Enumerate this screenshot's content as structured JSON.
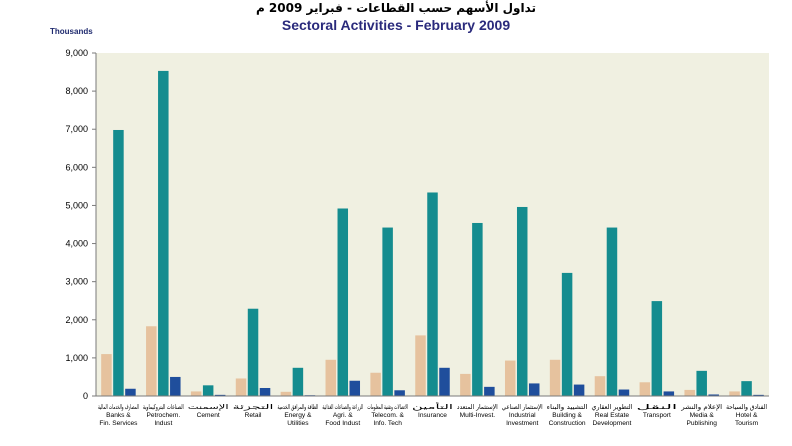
{
  "title_ar": "تداول الأسهم حسب القطاعات - فبراير 2009 م",
  "title_en": "Sectoral Activities - February 2009",
  "chart_data": {
    "type": "bar",
    "ylabel": "Thousands",
    "ylim": [
      0,
      9000
    ],
    "yticks": [
      "0",
      "1,000",
      "2,000",
      "3,000",
      "4,000",
      "5,000",
      "6,000",
      "7,000",
      "8,000",
      "9,000"
    ],
    "ytick_values": [
      0,
      1000,
      2000,
      3000,
      4000,
      5000,
      6000,
      7000,
      8000,
      9000
    ],
    "grid": false,
    "legend": "none",
    "categories": [
      {
        "en": [
          "Banks &",
          "Fin. Services"
        ],
        "ar": "المصارف والخدمات المالية"
      },
      {
        "en": [
          "Petrochem.",
          "Indust"
        ],
        "ar": "الصناعات البتروكيماوية"
      },
      {
        "en": [
          "Cement"
        ],
        "ar": "الإسمنت"
      },
      {
        "en": [
          "Retail"
        ],
        "ar": "التجزئة"
      },
      {
        "en": [
          "Energy &",
          "Utilities"
        ],
        "ar": "الطاقة والمرافق الخدمية"
      },
      {
        "en": [
          "Agri. &",
          "Food Indust"
        ],
        "ar": "الزراعة والصناعات الغذائية"
      },
      {
        "en": [
          "Telecom. &",
          "Info. Tech"
        ],
        "ar": "الاتصالات وتقنية المعلومات"
      },
      {
        "en": [
          "Insurance"
        ],
        "ar": "التأمين"
      },
      {
        "en": [
          "Multi-Invest."
        ],
        "ar": "الإستثمار المتعدد"
      },
      {
        "en": [
          "Industrial",
          "Investment"
        ],
        "ar": "الإستثمار الصناعي"
      },
      {
        "en": [
          "Building &",
          "Construction"
        ],
        "ar": "التشييد والبناء"
      },
      {
        "en": [
          "Real Estate",
          "Development"
        ],
        "ar": "التطوير العقاري"
      },
      {
        "en": [
          "Transport"
        ],
        "ar": "النقل"
      },
      {
        "en": [
          "Media &",
          "Publishing"
        ],
        "ar": "الإعلام والنشر"
      },
      {
        "en": [
          "Hotel &",
          "Tourism"
        ],
        "ar": "الفنادق والسياحة"
      }
    ],
    "series": [
      {
        "color": "#e6c29e",
        "values": [
          1100,
          1830,
          120,
          460,
          110,
          950,
          610,
          1590,
          580,
          930,
          950,
          520,
          360,
          160,
          120
        ]
      },
      {
        "color": "#148c8f",
        "values": [
          6980,
          8530,
          280,
          2290,
          740,
          4920,
          4420,
          5340,
          4540,
          4960,
          3230,
          4420,
          2490,
          660,
          390
        ]
      },
      {
        "color": "#1f4e9c",
        "values": [
          190,
          500,
          30,
          210,
          20,
          400,
          150,
          740,
          240,
          330,
          300,
          170,
          120,
          40,
          30
        ]
      }
    ],
    "colors": {
      "plot_bg": "#f0f0e1",
      "axis": "#7a7a7a"
    }
  }
}
